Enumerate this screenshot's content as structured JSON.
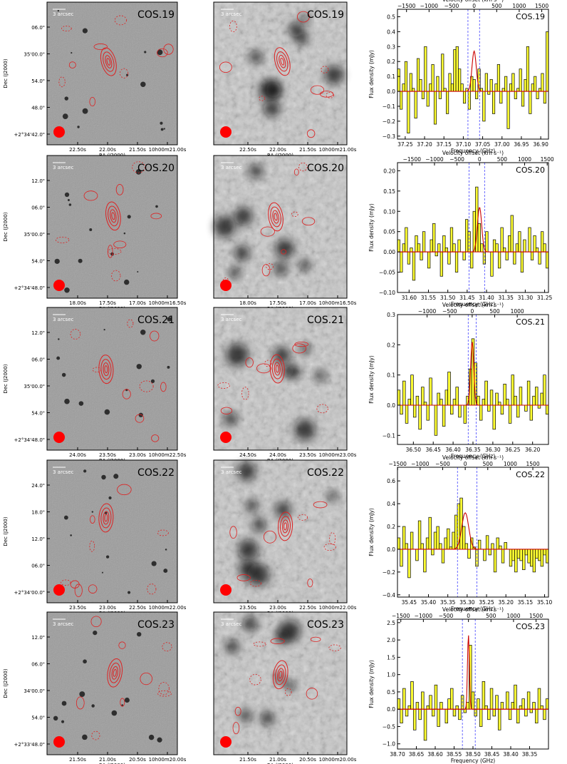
{
  "colors": {
    "bar": "#ffff33",
    "line": "#cc0000",
    "contour": "#dd2222",
    "vline": "#4444ff",
    "beam": "#ff0000"
  },
  "labels": {
    "dec_axis": "Dec (J2000)",
    "ra_axis": "RA (J2000)",
    "scale_bar": "3 arcsec",
    "velocity_axis": "Velocity offset (km s⁻¹)",
    "frequency_axis": "Frequency (GHz)",
    "flux_axis": "Flux density (mJy)"
  },
  "rows": [
    {
      "name": "COS.19",
      "dec_ticks": [
        "06.0\"",
        "35'00.0\"",
        "54.0\"",
        "48.0\"",
        "+2°34'42.0\""
      ],
      "ra_ticks_a": [
        "22.50s",
        "22.00s",
        "21.50s",
        "10h00m21.00s"
      ],
      "ra_ticks_b": [
        "22.50s",
        "22.00s",
        "21.50s",
        "10h00m21.00s"
      ],
      "freq_ticks": [
        "37.25",
        "37.20",
        "37.15",
        "37.10",
        "37.05",
        "37.00",
        "36.95",
        "36.90"
      ],
      "vel_ticks": [
        "−1500",
        "−1000",
        "−500",
        "0",
        "500",
        "1000",
        "1500"
      ],
      "flux_ticks": [
        "0.5",
        "0.4",
        "0.3",
        "0.2",
        "0.1",
        "0.0",
        "−0.1",
        "−0.2",
        "−0.3"
      ]
    },
    {
      "name": "COS.20",
      "dec_ticks": [
        "12.0\"",
        "06.0\"",
        "35'00.0\"",
        "54.0\"",
        "+2°34'48.0\""
      ],
      "ra_ticks_a": [
        "18.00s",
        "17.50s",
        "17.00s",
        "10h00m16.50s"
      ],
      "ra_ticks_b": [
        "18.00s",
        "17.50s",
        "17.00s",
        "10h00m16.50s"
      ],
      "freq_ticks": [
        "31.60",
        "31.55",
        "31.50",
        "31.45",
        "31.40",
        "31.35",
        "31.30",
        "31.25"
      ],
      "vel_ticks": [
        "−1500",
        "−1000",
        "−500",
        "0",
        "500",
        "1000",
        "1500"
      ],
      "flux_ticks": [
        "0.20",
        "0.15",
        "0.10",
        "0.05",
        "0.00",
        "−0.05",
        "−0.10"
      ]
    },
    {
      "name": "COS.21",
      "dec_ticks": [
        "12.0\"",
        "06.0\"",
        "35'00.0\"",
        "54.0\"",
        "+2°34'48.0\""
      ],
      "ra_ticks_a": [
        "24.00s",
        "23.50s",
        "23.00s",
        "10h00m22.50s"
      ],
      "ra_ticks_b": [
        "24.50s",
        "24.00s",
        "23.50s",
        "10h00m23.00s"
      ],
      "freq_ticks": [
        "36.50",
        "36.45",
        "36.40",
        "36.35",
        "36.30",
        "36.25",
        "36.20"
      ],
      "vel_ticks": [
        "−1000",
        "−500",
        "0",
        "500",
        "1000"
      ],
      "flux_ticks": [
        "0.3",
        "0.2",
        "0.1",
        "0.0",
        "−0.1"
      ]
    },
    {
      "name": "COS.22",
      "dec_ticks": [
        "24.0\"",
        "18.0\"",
        "12.0\"",
        "06.0\"",
        "+2°34'00.0\""
      ],
      "ra_ticks_a": [
        "23.50s",
        "23.00s",
        "22.50s",
        "10h00m22.00s"
      ],
      "ra_ticks_b": [
        "23.50s",
        "23.00s",
        "22.50s",
        "10h00m22.00s"
      ],
      "freq_ticks": [
        "35.45",
        "35.40",
        "35.35",
        "35.30",
        "35.25",
        "35.20",
        "35.15",
        "35.10"
      ],
      "vel_ticks": [
        "−1500",
        "−1000",
        "−500",
        "0",
        "500",
        "1000",
        "1500"
      ],
      "flux_ticks": [
        "0.6",
        "0.4",
        "0.2",
        "0.0",
        "−0.2",
        "−0.4"
      ]
    },
    {
      "name": "COS.23",
      "dec_ticks": [
        "12.0\"",
        "06.0\"",
        "34'00.0\"",
        "54.0\"",
        "+2°33'48.0\""
      ],
      "ra_ticks_a": [
        "21.50s",
        "21.00s",
        "20.50s",
        "10h00m20.00s"
      ],
      "ra_ticks_b": [
        "21.50s",
        "21.00s",
        "20.50s",
        "10h00m20.00s"
      ],
      "freq_ticks": [
        "38.70",
        "38.65",
        "38.60",
        "38.55",
        "38.50",
        "38.45",
        "38.40",
        "38.35"
      ],
      "vel_ticks": [
        "−1500",
        "−1000",
        "−500",
        "0",
        "500",
        "1000",
        "1500"
      ],
      "flux_ticks": [
        "2.5",
        "2.0",
        "1.5",
        "1.0",
        "0.5",
        "0.0",
        "−0.5",
        "−1.0"
      ]
    }
  ],
  "chart_data": [
    {
      "type": "bar",
      "title": "COS.19",
      "xlabel": "Frequency (GHz)",
      "ylabel": "Flux density (mJy)",
      "x_top_label": "Velocity offset (km s⁻¹)",
      "xlim": [
        37.27,
        36.88
      ],
      "ylim": [
        -0.32,
        0.55
      ],
      "line_center": 37.072,
      "line_peak": 0.27,
      "line_sigma": 0.0055,
      "vlines": [
        37.088,
        37.058
      ],
      "values": [
        0.15,
        -0.12,
        0.05,
        0.2,
        -0.28,
        0.12,
        0.02,
        -0.18,
        0.22,
        0.08,
        -0.05,
        0.3,
        -0.1,
        0.05,
        0.18,
        -0.22,
        0.1,
        -0.05,
        0.25,
        0.02,
        -0.15,
        0.12,
        0.05,
        0.28,
        0.3,
        0.15,
        0.05,
        -0.08,
        0.02,
        -0.12,
        0.1,
        0.08,
        -0.05,
        0.15,
        0.02,
        -0.2,
        0.12,
        -0.02,
        0.08,
        -0.15,
        0.05,
        0.18,
        -0.08,
        0.02,
        0.1,
        -0.25,
        0.05,
        0.12,
        -0.05,
        0.02,
        0.15,
        -0.1,
        0.08,
        0.3,
        -0.15,
        0.05,
        0.1,
        -0.05,
        0.02,
        0.12,
        -0.08,
        0.4
      ]
    },
    {
      "type": "bar",
      "title": "COS.20",
      "xlabel": "Frequency (GHz)",
      "ylabel": "Flux density (mJy)",
      "x_top_label": "Velocity offset (km s⁻¹)",
      "xlim": [
        31.63,
        31.24
      ],
      "ylim": [
        -0.1,
        0.22
      ],
      "line_center": 31.418,
      "line_peak": 0.11,
      "line_sigma": 0.0055,
      "vlines": [
        31.445,
        31.405
      ],
      "values": [
        0.03,
        -0.05,
        0.02,
        0.06,
        -0.03,
        0.01,
        -0.07,
        0.04,
        0.02,
        -0.02,
        0.05,
        0.0,
        -0.04,
        0.03,
        0.07,
        -0.01,
        0.02,
        -0.06,
        0.04,
        0.01,
        -0.03,
        0.06,
        0.02,
        -0.05,
        0.03,
        0.0,
        -0.02,
        0.08,
        0.05,
        -0.04,
        0.1,
        0.16,
        0.07,
        0.02,
        -0.03,
        0.05,
        0.0,
        -0.06,
        0.03,
        0.02,
        -0.04,
        0.06,
        0.01,
        -0.02,
        0.04,
        0.09,
        -0.03,
        0.02,
        0.05,
        -0.05,
        0.03,
        0.0,
        0.06,
        -0.02,
        0.04,
        0.01,
        -0.03,
        0.05,
        0.02,
        -0.04
      ]
    },
    {
      "type": "bar",
      "title": "COS.21",
      "xlabel": "Frequency (GHz)",
      "ylabel": "Flux density (mJy)",
      "x_top_label": "Velocity offset (km s⁻¹)",
      "xlim": [
        36.54,
        36.16
      ],
      "ylim": [
        -0.13,
        0.3
      ],
      "line_center": 36.352,
      "line_peak": 0.21,
      "line_sigma": 0.004,
      "vlines": [
        36.362,
        36.342
      ],
      "values": [
        0.05,
        -0.03,
        0.08,
        -0.06,
        0.02,
        0.1,
        -0.04,
        0.03,
        -0.08,
        0.06,
        0.01,
        -0.05,
        0.09,
        0.0,
        -0.1,
        0.04,
        0.02,
        -0.07,
        0.05,
        0.11,
        -0.03,
        0.02,
        0.06,
        -0.04,
        0.0,
        -0.06,
        0.03,
        0.12,
        0.22,
        0.14,
        0.03,
        -0.05,
        0.02,
        0.08,
        -0.02,
        0.05,
        -0.08,
        0.04,
        0.01,
        -0.03,
        0.07,
        0.02,
        -0.06,
        0.1,
        0.03,
        -0.04,
        0.06,
        0.0,
        -0.02,
        0.08,
        -0.05,
        0.03,
        0.06,
        -0.01,
        0.04,
        0.1,
        -0.03
      ]
    },
    {
      "type": "bar",
      "title": "COS.22",
      "xlabel": "Frequency (GHz)",
      "ylabel": "Flux density (mJy)",
      "x_top_label": "Velocity offset (km s⁻¹)",
      "xlim": [
        35.48,
        35.09
      ],
      "ylim": [
        -0.42,
        0.72
      ],
      "line_center": 35.305,
      "line_peak": 0.32,
      "line_sigma": 0.009,
      "vlines": [
        35.325,
        35.275
      ],
      "values": [
        0.1,
        -0.15,
        0.2,
        0.05,
        -0.25,
        0.15,
        0.0,
        -0.1,
        0.25,
        0.05,
        -0.2,
        0.1,
        0.28,
        -0.05,
        0.15,
        0.2,
        0.05,
        -0.12,
        0.1,
        0.18,
        0.02,
        0.15,
        0.3,
        0.4,
        0.45,
        0.2,
        0.05,
        -0.08,
        0.1,
        0.02,
        -0.15,
        0.08,
        0.0,
        -0.1,
        0.12,
        -0.05,
        0.05,
        -0.2,
        0.1,
        0.03,
        -0.12,
        0.06,
        0.0,
        -0.15,
        -0.1,
        -0.2,
        -0.08,
        -0.1,
        -0.18,
        -0.05,
        -0.12,
        -0.15,
        -0.2,
        -0.08,
        -0.1,
        -0.15,
        -0.05,
        -0.12
      ]
    },
    {
      "type": "bar",
      "title": "COS.23",
      "xlabel": "Frequency (GHz)",
      "ylabel": "Flux density (mJy)",
      "x_top_label": "Velocity offset (km s⁻¹)",
      "xlim": [
        38.7,
        38.3
      ],
      "ylim": [
        -1.15,
        2.6
      ],
      "line_center": 38.512,
      "line_peak": 2.15,
      "line_sigma": 0.0025,
      "vlines": [
        38.528,
        38.494
      ],
      "values": [
        0.3,
        -0.4,
        0.6,
        -0.2,
        0.1,
        0.8,
        -0.6,
        0.2,
        -0.3,
        0.5,
        -0.9,
        0.1,
        0.4,
        -0.2,
        0.7,
        -0.5,
        0.2,
        0.0,
        -0.4,
        0.3,
        0.6,
        -0.2,
        0.1,
        -0.3,
        0.4,
        -0.1,
        0.2,
        1.85,
        0.5,
        -0.2,
        0.3,
        -0.5,
        0.8,
        0.1,
        -0.3,
        0.6,
        -0.2,
        0.4,
        -0.6,
        0.2,
        0.0,
        0.5,
        -0.3,
        0.2,
        0.7,
        -0.4,
        0.1,
        0.3,
        -0.2,
        0.5,
        -0.1,
        0.2,
        -0.4,
        0.6,
        0.1,
        -0.3,
        0.3
      ]
    }
  ]
}
